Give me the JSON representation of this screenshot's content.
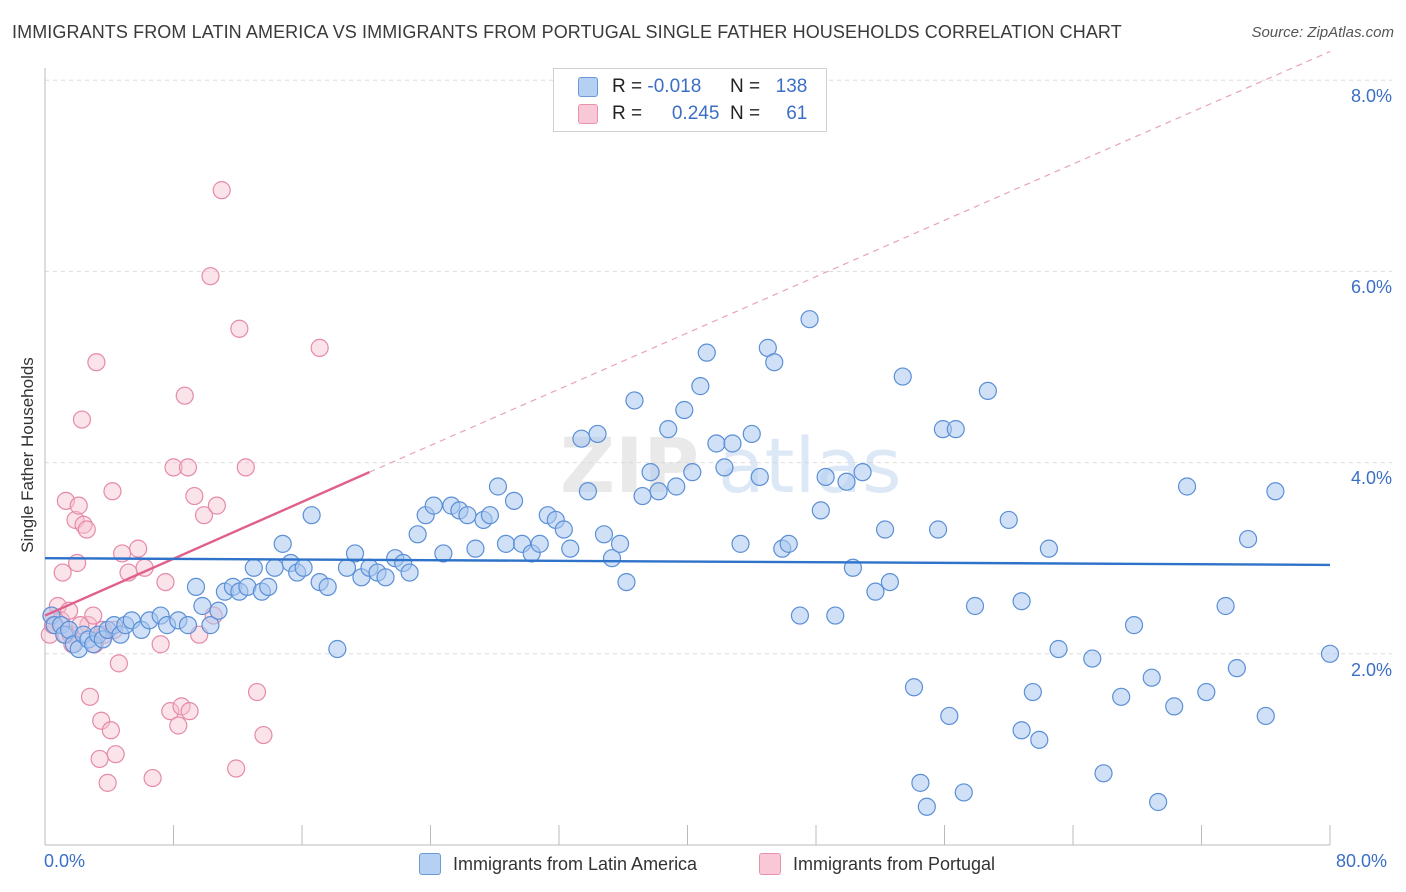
{
  "title": "IMMIGRANTS FROM LATIN AMERICA VS IMMIGRANTS FROM PORTUGAL SINGLE FATHER HOUSEHOLDS CORRELATION CHART",
  "source": "Source: ZipAtlas.com",
  "watermark": "ZIPatlas",
  "legend": {
    "rows": [
      {
        "r_label": "R =",
        "r_value": "-0.018",
        "n_label": "N =",
        "n_value": "138"
      },
      {
        "r_label": "R =",
        "r_value": "0.245",
        "n_label": "N =",
        "n_value": "61"
      }
    ]
  },
  "bottom_legend": [
    "Immigrants from Latin America",
    "Immigrants from Portugal"
  ],
  "colors": {
    "blue_fill": "#a9c8f0",
    "blue_stroke": "#5b8fd6",
    "blue_line": "#2e72c9",
    "pink_fill": "#f6c0d0",
    "pink_stroke": "#e58aa8",
    "pink_line": "#e0608a",
    "tick_label": "#3b6fc5",
    "grid": "#dddddd"
  },
  "chart_data": {
    "type": "scatter",
    "title": "IMMIGRANTS FROM LATIN AMERICA VS IMMIGRANTS FROM PORTUGAL SINGLE FATHER HOUSEHOLDS CORRELATION CHART",
    "xlabel": "",
    "ylabel": "Single Father Households",
    "xlim": [
      0,
      80
    ],
    "ylim": [
      0,
      8.3
    ],
    "x_tick_labels": [
      "0.0%",
      "80.0%"
    ],
    "y_ticks": [
      2,
      4,
      6,
      8
    ],
    "y_tick_labels": [
      "2.0%",
      "4.0%",
      "6.0%",
      "8.0%"
    ],
    "grid": "horizontal dashed",
    "legend_position": "top-center",
    "series": [
      {
        "name": "Immigrants from Latin America",
        "R": -0.018,
        "N": 138,
        "trend": {
          "x": [
            0,
            80
          ],
          "y": [
            3.0,
            2.93
          ]
        },
        "points": [
          [
            0.4,
            2.4
          ],
          [
            0.6,
            2.3
          ],
          [
            1.0,
            2.3
          ],
          [
            1.2,
            2.2
          ],
          [
            1.5,
            2.25
          ],
          [
            1.8,
            2.1
          ],
          [
            2.1,
            2.05
          ],
          [
            2.4,
            2.2
          ],
          [
            2.7,
            2.15
          ],
          [
            3.0,
            2.1
          ],
          [
            3.3,
            2.2
          ],
          [
            3.6,
            2.15
          ],
          [
            3.9,
            2.25
          ],
          [
            4.3,
            2.3
          ],
          [
            4.7,
            2.2
          ],
          [
            5.0,
            2.3
          ],
          [
            5.4,
            2.35
          ],
          [
            6.0,
            2.25
          ],
          [
            6.5,
            2.35
          ],
          [
            7.2,
            2.4
          ],
          [
            7.6,
            2.3
          ],
          [
            8.3,
            2.35
          ],
          [
            8.9,
            2.3
          ],
          [
            9.4,
            2.7
          ],
          [
            9.8,
            2.5
          ],
          [
            10.3,
            2.3
          ],
          [
            10.8,
            2.45
          ],
          [
            11.2,
            2.65
          ],
          [
            11.7,
            2.7
          ],
          [
            12.1,
            2.65
          ],
          [
            12.6,
            2.7
          ],
          [
            13.0,
            2.9
          ],
          [
            13.5,
            2.65
          ],
          [
            13.9,
            2.7
          ],
          [
            14.3,
            2.9
          ],
          [
            14.8,
            3.15
          ],
          [
            15.3,
            2.95
          ],
          [
            15.7,
            2.85
          ],
          [
            16.1,
            2.9
          ],
          [
            16.6,
            3.45
          ],
          [
            17.1,
            2.75
          ],
          [
            17.6,
            2.7
          ],
          [
            18.2,
            2.05
          ],
          [
            18.8,
            2.9
          ],
          [
            19.3,
            3.05
          ],
          [
            19.7,
            2.8
          ],
          [
            20.2,
            2.9
          ],
          [
            20.7,
            2.85
          ],
          [
            21.2,
            2.8
          ],
          [
            21.8,
            3.0
          ],
          [
            22.3,
            2.95
          ],
          [
            22.7,
            2.85
          ],
          [
            23.2,
            3.25
          ],
          [
            23.7,
            3.45
          ],
          [
            24.2,
            3.55
          ],
          [
            24.8,
            3.05
          ],
          [
            25.3,
            3.55
          ],
          [
            25.8,
            3.5
          ],
          [
            26.3,
            3.45
          ],
          [
            26.8,
            3.1
          ],
          [
            27.3,
            3.4
          ],
          [
            27.7,
            3.45
          ],
          [
            28.2,
            3.75
          ],
          [
            28.7,
            3.15
          ],
          [
            29.2,
            3.6
          ],
          [
            29.7,
            3.15
          ],
          [
            30.3,
            3.05
          ],
          [
            30.8,
            3.15
          ],
          [
            31.3,
            3.45
          ],
          [
            31.8,
            3.4
          ],
          [
            32.3,
            3.3
          ],
          [
            32.7,
            3.1
          ],
          [
            33.4,
            4.25
          ],
          [
            33.8,
            3.7
          ],
          [
            34.4,
            4.3
          ],
          [
            34.8,
            3.25
          ],
          [
            35.3,
            3.0
          ],
          [
            35.8,
            3.15
          ],
          [
            36.2,
            2.75
          ],
          [
            36.7,
            4.65
          ],
          [
            37.2,
            3.65
          ],
          [
            37.7,
            3.9
          ],
          [
            38.2,
            3.7
          ],
          [
            38.8,
            4.35
          ],
          [
            39.3,
            3.75
          ],
          [
            39.8,
            4.55
          ],
          [
            40.3,
            3.9
          ],
          [
            40.8,
            4.8
          ],
          [
            41.2,
            5.15
          ],
          [
            41.8,
            4.2
          ],
          [
            42.3,
            3.95
          ],
          [
            42.8,
            4.2
          ],
          [
            43.3,
            3.15
          ],
          [
            44.0,
            4.3
          ],
          [
            44.5,
            3.85
          ],
          [
            45.0,
            5.2
          ],
          [
            45.4,
            5.05
          ],
          [
            45.9,
            3.1
          ],
          [
            46.3,
            3.15
          ],
          [
            47.0,
            2.4
          ],
          [
            47.6,
            5.5
          ],
          [
            48.3,
            3.5
          ],
          [
            48.6,
            3.85
          ],
          [
            49.2,
            2.4
          ],
          [
            49.9,
            3.8
          ],
          [
            50.3,
            2.9
          ],
          [
            50.9,
            3.9
          ],
          [
            51.7,
            2.65
          ],
          [
            52.3,
            3.3
          ],
          [
            52.6,
            2.75
          ],
          [
            53.4,
            4.9
          ],
          [
            54.1,
            1.65
          ],
          [
            54.5,
            0.65
          ],
          [
            54.9,
            0.4
          ],
          [
            55.6,
            3.3
          ],
          [
            55.9,
            4.35
          ],
          [
            56.3,
            1.35
          ],
          [
            56.7,
            4.35
          ],
          [
            57.2,
            0.55
          ],
          [
            57.9,
            2.5
          ],
          [
            58.7,
            4.75
          ],
          [
            60.0,
            3.4
          ],
          [
            60.8,
            2.55
          ],
          [
            60.8,
            1.2
          ],
          [
            61.5,
            1.6
          ],
          [
            61.9,
            1.1
          ],
          [
            62.5,
            3.1
          ],
          [
            63.1,
            2.05
          ],
          [
            65.2,
            1.95
          ],
          [
            65.9,
            0.75
          ],
          [
            67.0,
            1.55
          ],
          [
            67.8,
            2.3
          ],
          [
            68.9,
            1.75
          ],
          [
            69.3,
            0.45
          ],
          [
            70.3,
            1.45
          ],
          [
            71.1,
            3.75
          ],
          [
            72.3,
            1.6
          ],
          [
            73.5,
            2.5
          ],
          [
            74.2,
            1.85
          ],
          [
            74.9,
            3.2
          ],
          [
            76.0,
            1.35
          ],
          [
            76.6,
            3.7
          ],
          [
            80.0,
            2.0
          ]
        ]
      },
      {
        "name": "Immigrants from Portugal",
        "R": 0.245,
        "N": 61,
        "trend": {
          "x": [
            0,
            20.2
          ],
          "y": [
            2.4,
            3.9
          ]
        },
        "trend_extended": {
          "x": [
            20.2,
            80
          ],
          "y": [
            3.9,
            8.3
          ]
        },
        "points": [
          [
            0.3,
            2.2
          ],
          [
            0.4,
            2.4
          ],
          [
            0.6,
            2.3
          ],
          [
            0.8,
            2.5
          ],
          [
            1.0,
            2.35
          ],
          [
            1.1,
            2.85
          ],
          [
            1.3,
            3.6
          ],
          [
            1.3,
            2.2
          ],
          [
            1.5,
            2.45
          ],
          [
            1.6,
            2.2
          ],
          [
            1.7,
            2.1
          ],
          [
            1.9,
            3.4
          ],
          [
            2.0,
            2.95
          ],
          [
            2.1,
            3.55
          ],
          [
            2.3,
            4.45
          ],
          [
            2.4,
            3.35
          ],
          [
            2.6,
            3.3
          ],
          [
            2.7,
            2.3
          ],
          [
            2.8,
            1.55
          ],
          [
            3.0,
            2.4
          ],
          [
            3.1,
            2.1
          ],
          [
            3.2,
            5.05
          ],
          [
            3.4,
            0.9
          ],
          [
            3.5,
            1.3
          ],
          [
            3.6,
            2.25
          ],
          [
            3.7,
            2.2
          ],
          [
            3.9,
            0.65
          ],
          [
            4.1,
            1.2
          ],
          [
            4.2,
            3.7
          ],
          [
            4.3,
            2.25
          ],
          [
            4.4,
            0.95
          ],
          [
            4.6,
            1.9
          ],
          [
            4.8,
            3.05
          ],
          [
            5.2,
            2.85
          ],
          [
            5.8,
            3.1
          ],
          [
            6.2,
            2.9
          ],
          [
            6.7,
            0.7
          ],
          [
            7.2,
            2.1
          ],
          [
            7.5,
            2.75
          ],
          [
            7.8,
            1.4
          ],
          [
            8.0,
            3.95
          ],
          [
            8.3,
            1.25
          ],
          [
            8.5,
            1.45
          ],
          [
            8.7,
            4.7
          ],
          [
            8.9,
            3.95
          ],
          [
            9.0,
            1.4
          ],
          [
            9.3,
            3.65
          ],
          [
            9.6,
            2.2
          ],
          [
            9.9,
            3.45
          ],
          [
            10.3,
            5.95
          ],
          [
            10.5,
            2.4
          ],
          [
            10.7,
            3.55
          ],
          [
            11.0,
            6.85
          ],
          [
            11.9,
            0.8
          ],
          [
            12.1,
            5.4
          ],
          [
            12.5,
            3.95
          ],
          [
            13.2,
            1.6
          ],
          [
            13.6,
            1.15
          ],
          [
            17.1,
            5.2
          ],
          [
            0.5,
            2.3
          ],
          [
            2.2,
            2.3
          ]
        ]
      }
    ]
  }
}
